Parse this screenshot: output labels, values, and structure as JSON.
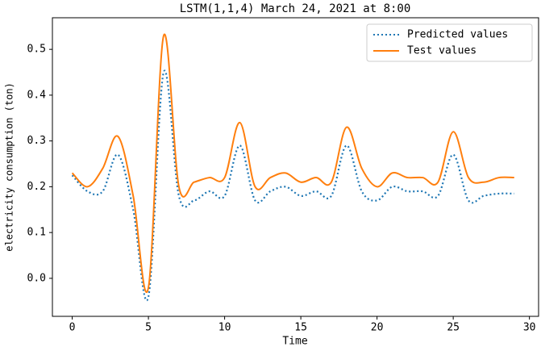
{
  "chart_data": {
    "type": "line",
    "title": "LSTM(1,1,4) March 24, 2021 at 8:00",
    "xlabel": "Time",
    "ylabel": "electricity consumption (ton)",
    "x": [
      0,
      1,
      2,
      3,
      4,
      5,
      6,
      7,
      8,
      9,
      10,
      11,
      12,
      13,
      14,
      15,
      16,
      17,
      18,
      19,
      20,
      21,
      22,
      23,
      24,
      25,
      26,
      27,
      28,
      29
    ],
    "series": [
      {
        "name": "Predicted values",
        "color": "#1f77b4",
        "dash": "dotted",
        "values": [
          0.225,
          0.19,
          0.19,
          0.27,
          0.15,
          -0.04,
          0.45,
          0.18,
          0.17,
          0.19,
          0.18,
          0.29,
          0.17,
          0.19,
          0.2,
          0.18,
          0.19,
          0.18,
          0.29,
          0.19,
          0.17,
          0.2,
          0.19,
          0.19,
          0.18,
          0.27,
          0.17,
          0.18,
          0.185,
          0.185
        ]
      },
      {
        "name": "Test values",
        "color": "#ff7f0e",
        "dash": "solid",
        "values": [
          0.23,
          0.2,
          0.24,
          0.31,
          0.18,
          -0.02,
          0.53,
          0.2,
          0.21,
          0.22,
          0.22,
          0.34,
          0.2,
          0.22,
          0.23,
          0.21,
          0.22,
          0.21,
          0.33,
          0.24,
          0.2,
          0.23,
          0.22,
          0.22,
          0.21,
          0.32,
          0.22,
          0.21,
          0.22,
          0.22
        ]
      }
    ],
    "xlim": [
      -1.3,
      30.6
    ],
    "ylim": [
      -0.083,
      0.569
    ],
    "xticks": [
      0,
      5,
      10,
      15,
      20,
      25,
      30
    ],
    "yticks": [
      {
        "value": 0,
        "label": "0.0"
      },
      0.1,
      0.2,
      0.3,
      0.4,
      0.5
    ],
    "legend": "upper right",
    "grid": false
  }
}
